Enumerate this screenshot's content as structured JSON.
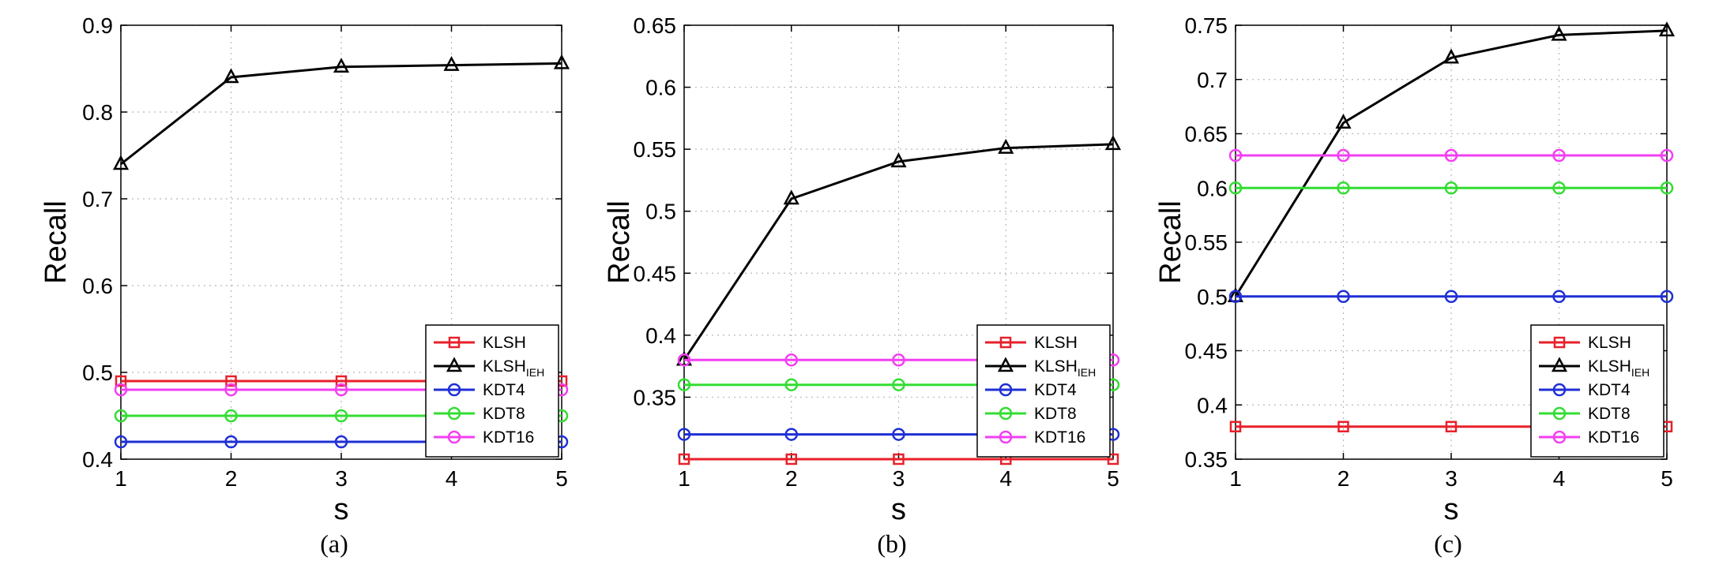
{
  "colors": {
    "KLSH": "#e8202a",
    "KLSH_IEH": "#000000",
    "KDT4": "#1f2fd6",
    "KDT8": "#33dd33",
    "KDT16": "#f23ff2",
    "grid": "#b8b8b8"
  },
  "legend": [
    {
      "key": "KLSH",
      "label": "KLSH",
      "sub": "",
      "marker": "square"
    },
    {
      "key": "KLSH_IEH",
      "label": "KLSH",
      "sub": "IEH",
      "marker": "triangle"
    },
    {
      "key": "KDT4",
      "label": "KDT4",
      "sub": "",
      "marker": "circle"
    },
    {
      "key": "KDT8",
      "label": "KDT8",
      "sub": "",
      "marker": "circle"
    },
    {
      "key": "KDT16",
      "label": "KDT16",
      "sub": "",
      "marker": "circle"
    }
  ],
  "chart_data": [
    {
      "type": "line",
      "caption": "(a)",
      "xlabel": "s",
      "ylabel": "Recall",
      "x": [
        1,
        2,
        3,
        4,
        5
      ],
      "xticks": [
        "1",
        "2",
        "3",
        "4",
        "5"
      ],
      "xlim": [
        1,
        5
      ],
      "ylim": [
        0.4,
        0.9
      ],
      "yticks": [
        "0.4",
        "0.5",
        "0.6",
        "0.7",
        "0.8",
        "0.9"
      ],
      "grid": true,
      "legend_position": "bottom-right",
      "series": [
        {
          "key": "KLSH",
          "values": [
            0.49,
            0.49,
            0.49,
            0.49,
            0.49
          ]
        },
        {
          "key": "KLSH_IEH",
          "values": [
            0.74,
            0.84,
            0.852,
            0.854,
            0.856
          ]
        },
        {
          "key": "KDT4",
          "values": [
            0.42,
            0.42,
            0.42,
            0.42,
            0.42
          ]
        },
        {
          "key": "KDT8",
          "values": [
            0.45,
            0.45,
            0.45,
            0.45,
            0.45
          ]
        },
        {
          "key": "KDT16",
          "values": [
            0.48,
            0.48,
            0.48,
            0.48,
            0.48
          ]
        }
      ]
    },
    {
      "type": "line",
      "caption": "(b)",
      "xlabel": "s",
      "ylabel": "Recall",
      "x": [
        1,
        2,
        3,
        4,
        5
      ],
      "xticks": [
        "1",
        "2",
        "3",
        "4",
        "5"
      ],
      "xlim": [
        1,
        5
      ],
      "ylim": [
        0.3,
        0.65
      ],
      "yticks": [
        "0.35",
        "0.4",
        "0.45",
        "0.5",
        "0.55",
        "0.6",
        "0.65"
      ],
      "grid": true,
      "legend_position": "bottom-right",
      "series": [
        {
          "key": "KLSH",
          "values": [
            0.3,
            0.3,
            0.3,
            0.3,
            0.3
          ]
        },
        {
          "key": "KLSH_IEH",
          "values": [
            0.38,
            0.51,
            0.54,
            0.551,
            0.554
          ]
        },
        {
          "key": "KDT4",
          "values": [
            0.32,
            0.32,
            0.32,
            0.32,
            0.32
          ]
        },
        {
          "key": "KDT8",
          "values": [
            0.36,
            0.36,
            0.36,
            0.36,
            0.36
          ]
        },
        {
          "key": "KDT16",
          "values": [
            0.38,
            0.38,
            0.38,
            0.38,
            0.38
          ]
        }
      ]
    },
    {
      "type": "line",
      "caption": "(c)",
      "xlabel": "s",
      "ylabel": "Recall",
      "x": [
        1,
        2,
        3,
        4,
        5
      ],
      "xticks": [
        "1",
        "2",
        "3",
        "4",
        "5"
      ],
      "xlim": [
        1,
        5
      ],
      "ylim": [
        0.35,
        0.75
      ],
      "yticks": [
        "0.35",
        "0.4",
        "0.45",
        "0.5",
        "0.55",
        "0.6",
        "0.65",
        "0.7",
        "0.75"
      ],
      "grid": true,
      "legend_position": "bottom-right",
      "series": [
        {
          "key": "KLSH",
          "values": [
            0.38,
            0.38,
            0.38,
            0.38,
            0.38
          ]
        },
        {
          "key": "KLSH_IEH",
          "values": [
            0.5,
            0.66,
            0.72,
            0.741,
            0.745
          ]
        },
        {
          "key": "KDT4",
          "values": [
            0.5,
            0.5,
            0.5,
            0.5,
            0.5
          ]
        },
        {
          "key": "KDT8",
          "values": [
            0.6,
            0.6,
            0.6,
            0.6,
            0.6
          ]
        },
        {
          "key": "KDT16",
          "values": [
            0.63,
            0.63,
            0.63,
            0.63,
            0.63
          ]
        }
      ]
    }
  ]
}
